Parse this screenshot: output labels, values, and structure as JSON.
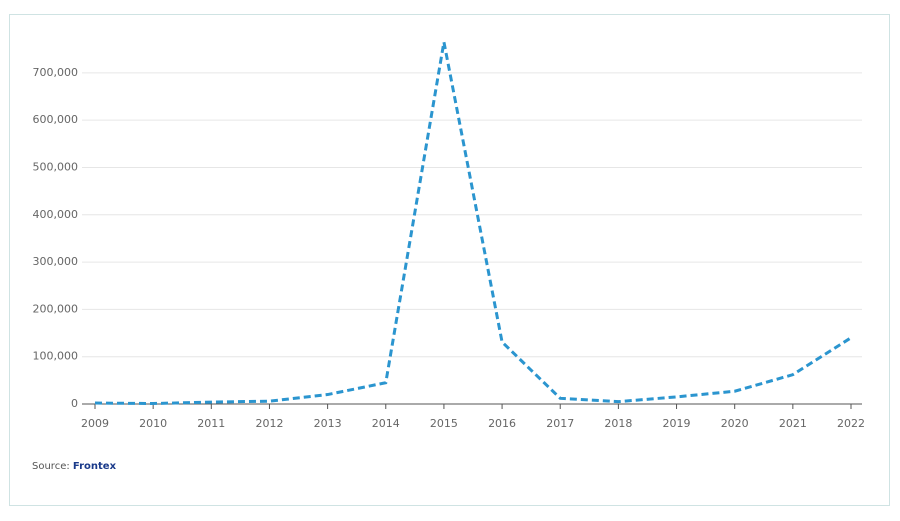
{
  "chart_data": {
    "type": "line",
    "categories": [
      "2009",
      "2010",
      "2011",
      "2012",
      "2013",
      "2014",
      "2015",
      "2016",
      "2017",
      "2018",
      "2019",
      "2020",
      "2021",
      "2022"
    ],
    "series": [
      {
        "color": "#2b95cf",
        "values": [
          2000,
          1000,
          4000,
          6000,
          20000,
          45000,
          765000,
          131000,
          12000,
          5000,
          15000,
          27000,
          62000,
          140000
        ]
      }
    ],
    "ylim": [
      0,
      780000
    ],
    "yticks": [
      0,
      {
        "value": 100000,
        "label": "100,000"
      },
      {
        "value": 200000,
        "label": "200,000"
      },
      {
        "value": 300000,
        "label": "300,000"
      },
      {
        "value": 400000,
        "label": "400,000"
      },
      {
        "value": 500000,
        "label": "500,000"
      },
      {
        "value": 600000,
        "label": "600,000"
      },
      {
        "value": 700000,
        "label": "700,000"
      }
    ],
    "grid": true,
    "source_label": "Source:",
    "source": "Frontex"
  }
}
